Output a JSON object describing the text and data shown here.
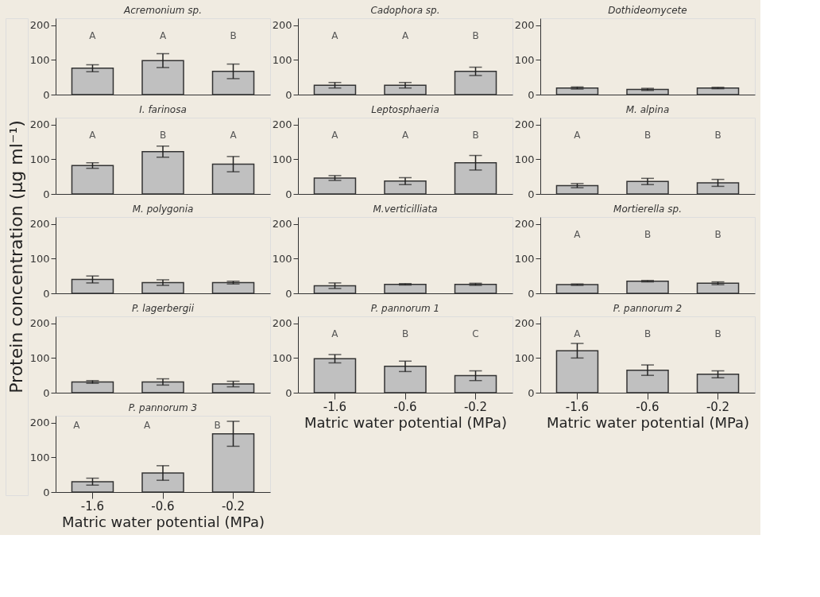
{
  "chart_data": [
    {
      "type": "bar",
      "title": "Acremonium sp.",
      "ylabel": "Protein concentration (µg ml⁻¹)",
      "categories": [
        "-1.6",
        "-0.6",
        "-0.2"
      ],
      "values": [
        76,
        98,
        67
      ],
      "errors": [
        10,
        20,
        21
      ],
      "color": "#c0c0c0",
      "ylim": [
        0,
        220
      ],
      "yticks": [
        0,
        100,
        200
      ],
      "tick_labels": "y",
      "annotations": [
        "A",
        "A",
        "B"
      ]
    },
    {
      "type": "bar",
      "title": "I. farinosa",
      "categories": [
        "-1.6",
        "-0.6",
        "-0.2"
      ],
      "values": [
        82,
        122,
        86
      ],
      "errors": [
        8,
        16,
        22
      ],
      "color": "#c0c0c0",
      "ylim": [
        0,
        220
      ],
      "yticks": [
        0,
        100,
        200
      ],
      "tick_labels": "y",
      "annotations": [
        "A",
        "B",
        "A"
      ]
    },
    {
      "type": "bar",
      "title": "M. polygonia",
      "categories": [
        "-1.6",
        "-0.6",
        "-0.2"
      ],
      "values": [
        40,
        31,
        31
      ],
      "errors": [
        10,
        8,
        4
      ],
      "color": "#c0c0c0",
      "ylim": [
        0,
        220
      ],
      "yticks": [
        0,
        100,
        200
      ],
      "tick_labels": "y"
    },
    {
      "type": "bar",
      "title": "P. lagerbergii",
      "categories": [
        "-1.6",
        "-0.6",
        "-0.2"
      ],
      "values": [
        31,
        31,
        25
      ],
      "errors": [
        4,
        9,
        8
      ],
      "color": "#c0c0c0",
      "ylim": [
        0,
        220
      ],
      "yticks": [
        0,
        100,
        200
      ],
      "tick_labels": "y"
    },
    {
      "type": "bar",
      "title": "P. pannorum 3",
      "xlabel": "Matric water potential (MPa)",
      "categories": [
        "-1.6",
        "-0.6",
        "-0.2"
      ],
      "values": [
        30,
        55,
        168
      ],
      "errors": [
        10,
        21,
        36
      ],
      "color": "#c0c0c0",
      "ylim": [
        0,
        220
      ],
      "yticks": [
        0,
        100,
        200
      ],
      "annotations": [
        "A",
        "A",
        "B"
      ]
    },
    {
      "type": "bar",
      "title": "Cadophora sp.",
      "categories": [
        "-1.6",
        "-0.6",
        "-0.2"
      ],
      "values": [
        27,
        27,
        67
      ],
      "errors": [
        8,
        8,
        12
      ],
      "color": "#c0c0c0",
      "ylim": [
        0,
        220
      ],
      "yticks": [
        0,
        100,
        200
      ],
      "tick_labels": "y",
      "annotations": [
        "A",
        "A",
        "B"
      ]
    },
    {
      "type": "bar",
      "title": "Leptosphaeria",
      "categories": [
        "-1.6",
        "-0.6",
        "-0.2"
      ],
      "values": [
        46,
        37,
        90
      ],
      "errors": [
        7,
        10,
        21
      ],
      "color": "#c0c0c0",
      "ylim": [
        0,
        220
      ],
      "yticks": [
        0,
        100,
        200
      ],
      "tick_labels": "y",
      "annotations": [
        "A",
        "A",
        "B"
      ]
    },
    {
      "type": "bar",
      "title": "M.verticilliata",
      "categories": [
        "-1.6",
        "-0.6",
        "-0.2"
      ],
      "values": [
        22,
        26,
        26
      ],
      "errors": [
        8,
        2,
        3
      ],
      "color": "#c0c0c0",
      "ylim": [
        0,
        220
      ],
      "yticks": [
        0,
        100,
        200
      ],
      "tick_labels": "y"
    },
    {
      "type": "bar",
      "title": "P. pannorum 1",
      "xlabel": "Matric water potential (MPa)",
      "categories": [
        "-1.6",
        "-0.6",
        "-0.2"
      ],
      "values": [
        98,
        76,
        49
      ],
      "errors": [
        12,
        15,
        14
      ],
      "color": "#c0c0c0",
      "ylim": [
        0,
        220
      ],
      "yticks": [
        0,
        100,
        200
      ],
      "annotations": [
        "A",
        "B",
        "C"
      ]
    },
    {
      "type": "bar",
      "title": "Dothideomycete",
      "categories": [
        "-1.6",
        "-0.6",
        "-0.2"
      ],
      "values": [
        19,
        15,
        19
      ],
      "errors": [
        3,
        3,
        2
      ],
      "color": "#c0c0c0",
      "ylim": [
        0,
        220
      ],
      "yticks": [
        0,
        100,
        200
      ],
      "tick_labels": "y"
    },
    {
      "type": "bar",
      "title": "M. alpina",
      "categories": [
        "-1.6",
        "-0.6",
        "-0.2"
      ],
      "values": [
        24,
        36,
        32
      ],
      "errors": [
        6,
        9,
        10
      ],
      "color": "#c0c0c0",
      "ylim": [
        0,
        220
      ],
      "yticks": [
        0,
        100,
        200
      ],
      "tick_labels": "y",
      "annotations": [
        "A",
        "B",
        "B"
      ]
    },
    {
      "type": "bar",
      "title": "Mortierella sp.",
      "categories": [
        "-1.6",
        "-0.6",
        "-0.2"
      ],
      "values": [
        25,
        35,
        29
      ],
      "errors": [
        2,
        2,
        4
      ],
      "color": "#c0c0c0",
      "ylim": [
        0,
        220
      ],
      "yticks": [
        0,
        100,
        200
      ],
      "tick_labels": "y",
      "annotations": [
        "A",
        "B",
        "B"
      ]
    },
    {
      "type": "bar",
      "title": "P. pannorum 2",
      "xlabel": "Matric water potential (MPa)",
      "categories": [
        "-1.6",
        "-0.6",
        "-0.2"
      ],
      "values": [
        121,
        65,
        53
      ],
      "errors": [
        21,
        15,
        10
      ],
      "color": "#c0c0c0",
      "ylim": [
        0,
        220
      ],
      "yticks": [
        0,
        100,
        200
      ],
      "annotations": [
        "A",
        "B",
        "B"
      ]
    }
  ]
}
